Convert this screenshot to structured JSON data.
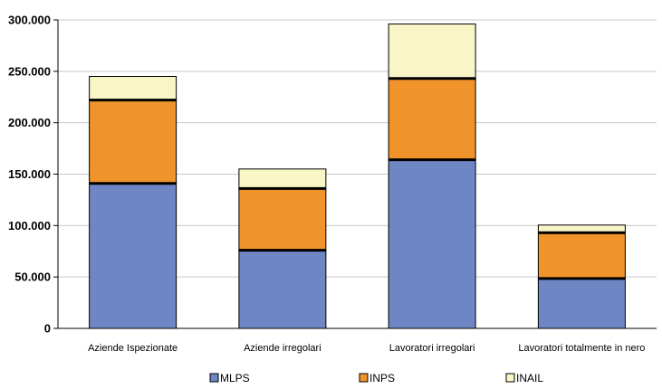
{
  "chart_data": {
    "type": "bar",
    "stacked": true,
    "categories": [
      "Aziende Ispezionate",
      "Aziende irregolari",
      "Lavoratori irregolari",
      "Lavoratori totalmente in nero"
    ],
    "series": [
      {
        "name": "MLPS",
        "values": [
          141000,
          76000,
          164000,
          48500
        ],
        "color": "#6f86c5"
      },
      {
        "name": "INPS",
        "values": [
          81000,
          60000,
          79000,
          44500
        ],
        "color": "#f1932b"
      },
      {
        "name": "INAIL",
        "values": [
          23000,
          19000,
          53000,
          7500
        ],
        "color": "#f8f6c7"
      }
    ],
    "ylim": [
      0,
      300000
    ],
    "yticks": [
      0,
      50000,
      100000,
      150000,
      200000,
      250000,
      300000
    ],
    "ytick_labels": [
      "0",
      "50.000",
      "100.000",
      "150.000",
      "200.000",
      "250.000",
      "300.000"
    ],
    "grid": true,
    "legend_position": "bottom",
    "title": "",
    "xlabel": "",
    "ylabel": ""
  }
}
